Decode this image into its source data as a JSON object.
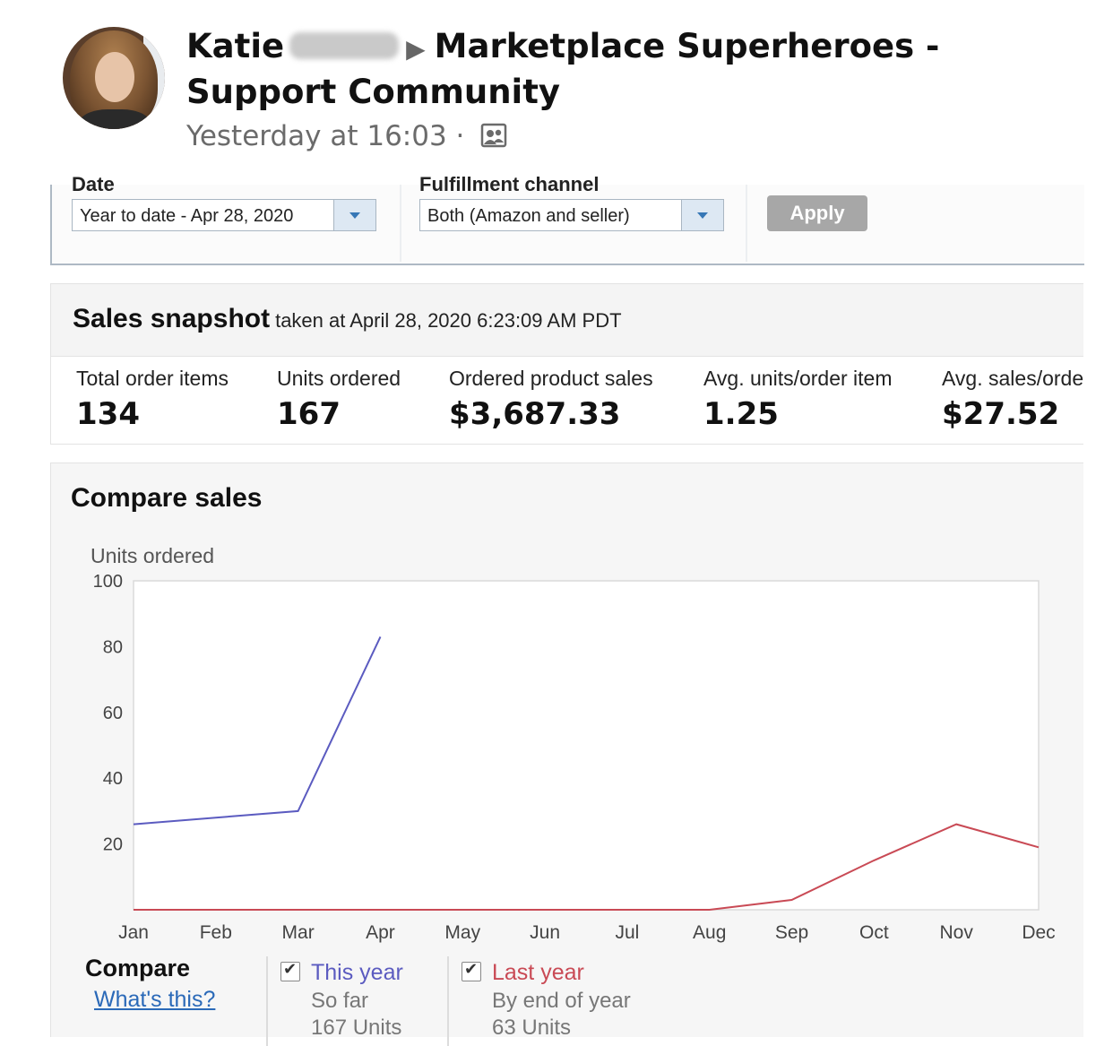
{
  "post": {
    "author": "Katie",
    "group": "Marketplace Superheroes - Support Community",
    "group_line2": "Support Community",
    "group_line1": "Marketplace Superheroes -",
    "timestamp": "Yesterday at 16:03",
    "separator": "·",
    "icons": {
      "arrow": "triangle-right-icon",
      "audience": "group-icon"
    }
  },
  "filters": {
    "date_label": "Date",
    "date_value": "Year to date - Apr 28, 2020",
    "channel_label": "Fulfillment channel",
    "channel_value": "Both (Amazon and seller)",
    "apply_label": "Apply"
  },
  "snapshot": {
    "title": "Sales snapshot",
    "subtitle": "taken at April 28, 2020 6:23:09 AM PDT",
    "metrics": [
      {
        "label": "Total order items",
        "value": "134"
      },
      {
        "label": "Units ordered",
        "value": "167"
      },
      {
        "label": "Ordered product sales",
        "value": "$3,687.33"
      },
      {
        "label": "Avg. units/order item",
        "value": "1.25"
      },
      {
        "label": "Avg. sales/order item",
        "value": "$27.52"
      }
    ]
  },
  "compare": {
    "title": "Compare sales",
    "heading": "Compare",
    "help_link": "What's this?",
    "legend": [
      {
        "name": "This year",
        "sub": "So far",
        "units": "167 Units",
        "color": "#5b5bc0",
        "checked": true
      },
      {
        "name": "Last year",
        "sub": "By end of year",
        "units": "63 Units",
        "color": "#c94a55",
        "checked": true
      }
    ]
  },
  "chart_data": {
    "type": "line",
    "ylabel": "Units ordered",
    "ylim": [
      0,
      100
    ],
    "yticks": [
      20,
      40,
      60,
      80,
      100
    ],
    "categories": [
      "Jan",
      "Feb",
      "Mar",
      "Apr",
      "May",
      "Jun",
      "Jul",
      "Aug",
      "Sep",
      "Oct",
      "Nov",
      "Dec"
    ],
    "series": [
      {
        "name": "This year",
        "color": "#5b5bc0",
        "values": [
          26,
          28,
          30,
          83,
          null,
          null,
          null,
          null,
          null,
          null,
          null,
          null
        ]
      },
      {
        "name": "Last year",
        "color": "#c94a55",
        "values": [
          0,
          0,
          0,
          0,
          0,
          0,
          0,
          0,
          3,
          15,
          26,
          19
        ]
      }
    ],
    "grid": false,
    "legend": "bottom"
  }
}
